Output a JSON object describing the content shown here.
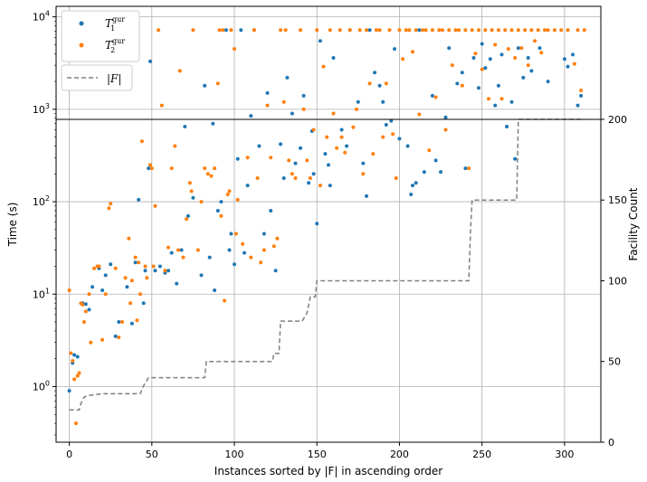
{
  "chart_data": {
    "type": "scatter",
    "xlabel": "Instances sorted by |F| in ascending order",
    "ylabel": "Time (s)",
    "y2label": "Facility Count",
    "xlim": [
      -8,
      322
    ],
    "ylim": [
      0.25,
      13000
    ],
    "yscale": "log",
    "y2lim": [
      0,
      270
    ],
    "x_ticks": [
      0,
      50,
      100,
      150,
      200,
      250,
      300
    ],
    "y_ticks": [
      1,
      10,
      100,
      1000,
      10000
    ],
    "y_tick_labels": [
      "10^0",
      "10^1",
      "10^2",
      "10^3",
      "10^4"
    ],
    "y2_ticks": [
      0,
      50,
      100,
      150,
      200
    ],
    "grid": true,
    "timeout_limit": 7200,
    "colors": {
      "t1": "#1f77b4",
      "t2": "#ff7f0e",
      "f": "#808080"
    },
    "legend": {
      "position": "top-left",
      "entries": [
        {
          "key": "t1",
          "base": "T",
          "sub": "1",
          "sup": "gur"
        },
        {
          "key": "t2",
          "base": "T",
          "sup": "gur",
          "sub": "2"
        },
        {
          "key": "f",
          "label": "|F|"
        }
      ]
    },
    "series": [
      {
        "key": "t1",
        "points": [
          [
            0,
            0.9
          ],
          [
            2,
            1.8
          ],
          [
            3,
            2.2
          ],
          [
            5,
            2.1
          ],
          [
            8,
            8
          ],
          [
            10,
            7.8
          ],
          [
            12,
            6.8
          ],
          [
            14,
            12
          ],
          [
            18,
            19
          ],
          [
            20,
            11
          ],
          [
            22,
            16
          ],
          [
            25,
            21
          ],
          [
            28,
            3.5
          ],
          [
            30,
            5
          ],
          [
            35,
            12
          ],
          [
            38,
            4.8
          ],
          [
            40,
            22
          ],
          [
            42,
            105
          ],
          [
            45,
            8
          ],
          [
            46,
            18
          ],
          [
            48,
            230
          ],
          [
            49,
            3300
          ],
          [
            52,
            18
          ],
          [
            55,
            20
          ],
          [
            58,
            17
          ],
          [
            60,
            18
          ],
          [
            62,
            28
          ],
          [
            65,
            13
          ],
          [
            68,
            30
          ],
          [
            70,
            650
          ],
          [
            72,
            70
          ],
          [
            75,
            110
          ],
          [
            80,
            16
          ],
          [
            82,
            1800
          ],
          [
            85,
            25
          ],
          [
            87,
            700
          ],
          [
            88,
            11
          ],
          [
            90,
            80
          ],
          [
            92,
            100
          ],
          [
            95,
            7200
          ],
          [
            97,
            30
          ],
          [
            98,
            45
          ],
          [
            100,
            21
          ],
          [
            102,
            290
          ],
          [
            104,
            7200
          ],
          [
            106,
            28
          ],
          [
            108,
            150
          ],
          [
            110,
            850
          ],
          [
            112,
            7200
          ],
          [
            115,
            400
          ],
          [
            118,
            45
          ],
          [
            120,
            1500
          ],
          [
            122,
            80
          ],
          [
            125,
            18
          ],
          [
            128,
            420
          ],
          [
            130,
            180
          ],
          [
            132,
            2200
          ],
          [
            135,
            900
          ],
          [
            137,
            260
          ],
          [
            140,
            380
          ],
          [
            142,
            1400
          ],
          [
            145,
            160
          ],
          [
            147,
            580
          ],
          [
            148,
            200
          ],
          [
            150,
            58
          ],
          [
            152,
            5500
          ],
          [
            155,
            330
          ],
          [
            157,
            250
          ],
          [
            158,
            150
          ],
          [
            160,
            3600
          ],
          [
            165,
            600
          ],
          [
            168,
            400
          ],
          [
            170,
            7200
          ],
          [
            175,
            1200
          ],
          [
            178,
            260
          ],
          [
            180,
            115
          ],
          [
            182,
            7200
          ],
          [
            185,
            2500
          ],
          [
            188,
            1800
          ],
          [
            190,
            1200
          ],
          [
            192,
            680
          ],
          [
            195,
            750
          ],
          [
            197,
            4500
          ],
          [
            200,
            480
          ],
          [
            205,
            400
          ],
          [
            207,
            120
          ],
          [
            208,
            150
          ],
          [
            210,
            160
          ],
          [
            212,
            7200
          ],
          [
            215,
            210
          ],
          [
            220,
            1400
          ],
          [
            222,
            280
          ],
          [
            225,
            210
          ],
          [
            228,
            820
          ],
          [
            230,
            4600
          ],
          [
            235,
            1900
          ],
          [
            238,
            2500
          ],
          [
            240,
            230
          ],
          [
            245,
            3600
          ],
          [
            248,
            1700
          ],
          [
            250,
            5100
          ],
          [
            252,
            2800
          ],
          [
            255,
            3500
          ],
          [
            258,
            1100
          ],
          [
            260,
            1800
          ],
          [
            262,
            3900
          ],
          [
            265,
            650
          ],
          [
            268,
            1200
          ],
          [
            270,
            290
          ],
          [
            272,
            4600
          ],
          [
            275,
            2200
          ],
          [
            278,
            3600
          ],
          [
            280,
            2600
          ],
          [
            285,
            4600
          ],
          [
            290,
            2000
          ],
          [
            300,
            3500
          ],
          [
            302,
            2900
          ],
          [
            305,
            3900
          ],
          [
            308,
            1100
          ],
          [
            310,
            1400
          ]
        ]
      },
      {
        "key": "t2",
        "points": [
          [
            0,
            11
          ],
          [
            1,
            2.3
          ],
          [
            2,
            1.9
          ],
          [
            3,
            1.2
          ],
          [
            4,
            0.4
          ],
          [
            5,
            1.3
          ],
          [
            6,
            1.4
          ],
          [
            7,
            8
          ],
          [
            8,
            7.7
          ],
          [
            9,
            5
          ],
          [
            10,
            6.5
          ],
          [
            12,
            10
          ],
          [
            13,
            3
          ],
          [
            15,
            19
          ],
          [
            17,
            20
          ],
          [
            18,
            20
          ],
          [
            20,
            3.2
          ],
          [
            22,
            10
          ],
          [
            24,
            85
          ],
          [
            25,
            95
          ],
          [
            28,
            19
          ],
          [
            30,
            3.4
          ],
          [
            32,
            5
          ],
          [
            34,
            15
          ],
          [
            36,
            40
          ],
          [
            37,
            8
          ],
          [
            38,
            14
          ],
          [
            40,
            25
          ],
          [
            41,
            5.2
          ],
          [
            42,
            22
          ],
          [
            43,
            10
          ],
          [
            44,
            450
          ],
          [
            46,
            20
          ],
          [
            47,
            15
          ],
          [
            49,
            250
          ],
          [
            50,
            230
          ],
          [
            51,
            20
          ],
          [
            52,
            90
          ],
          [
            54,
            7200
          ],
          [
            56,
            1100
          ],
          [
            58,
            18
          ],
          [
            60,
            32
          ],
          [
            62,
            230
          ],
          [
            64,
            400
          ],
          [
            66,
            30
          ],
          [
            67,
            2600
          ],
          [
            69,
            25
          ],
          [
            71,
            65
          ],
          [
            73,
            160
          ],
          [
            74,
            130
          ],
          [
            75,
            7200
          ],
          [
            78,
            30
          ],
          [
            80,
            100
          ],
          [
            82,
            230
          ],
          [
            84,
            200
          ],
          [
            86,
            190
          ],
          [
            88,
            230
          ],
          [
            90,
            1900
          ],
          [
            91,
            7200
          ],
          [
            92,
            70
          ],
          [
            93,
            7200
          ],
          [
            94,
            8.5
          ],
          [
            96,
            120
          ],
          [
            97,
            130
          ],
          [
            98,
            7200
          ],
          [
            100,
            4500
          ],
          [
            101,
            45
          ],
          [
            102,
            105
          ],
          [
            105,
            35
          ],
          [
            108,
            300
          ],
          [
            110,
            25
          ],
          [
            112,
            7200
          ],
          [
            114,
            180
          ],
          [
            116,
            22
          ],
          [
            118,
            30
          ],
          [
            120,
            1100
          ],
          [
            122,
            300
          ],
          [
            124,
            33
          ],
          [
            126,
            40
          ],
          [
            128,
            7200
          ],
          [
            130,
            1200
          ],
          [
            131,
            7200
          ],
          [
            133,
            280
          ],
          [
            135,
            200
          ],
          [
            137,
            180
          ],
          [
            140,
            7200
          ],
          [
            142,
            1000
          ],
          [
            144,
            280
          ],
          [
            146,
            180
          ],
          [
            148,
            600
          ],
          [
            150,
            7200
          ],
          [
            152,
            150
          ],
          [
            154,
            2900
          ],
          [
            156,
            500
          ],
          [
            158,
            7200
          ],
          [
            160,
            900
          ],
          [
            162,
            380
          ],
          [
            164,
            7200
          ],
          [
            165,
            500
          ],
          [
            167,
            340
          ],
          [
            170,
            7200
          ],
          [
            172,
            640
          ],
          [
            174,
            1000
          ],
          [
            176,
            7200
          ],
          [
            178,
            200
          ],
          [
            180,
            7200
          ],
          [
            182,
            1900
          ],
          [
            184,
            330
          ],
          [
            186,
            7200
          ],
          [
            188,
            7200
          ],
          [
            190,
            500
          ],
          [
            192,
            1900
          ],
          [
            194,
            7200
          ],
          [
            196,
            540
          ],
          [
            198,
            180
          ],
          [
            200,
            7200
          ],
          [
            202,
            3500
          ],
          [
            204,
            7200
          ],
          [
            206,
            7200
          ],
          [
            208,
            4200
          ],
          [
            210,
            7200
          ],
          [
            212,
            880
          ],
          [
            214,
            7200
          ],
          [
            216,
            7200
          ],
          [
            218,
            360
          ],
          [
            220,
            7200
          ],
          [
            222,
            1350
          ],
          [
            224,
            7200
          ],
          [
            226,
            7200
          ],
          [
            228,
            600
          ],
          [
            230,
            7200
          ],
          [
            232,
            3000
          ],
          [
            234,
            7200
          ],
          [
            236,
            7200
          ],
          [
            238,
            1800
          ],
          [
            240,
            7200
          ],
          [
            242,
            230
          ],
          [
            244,
            7200
          ],
          [
            246,
            4000
          ],
          [
            248,
            7200
          ],
          [
            250,
            2700
          ],
          [
            252,
            7200
          ],
          [
            254,
            1300
          ],
          [
            256,
            7200
          ],
          [
            258,
            5000
          ],
          [
            260,
            7200
          ],
          [
            262,
            1300
          ],
          [
            264,
            7200
          ],
          [
            266,
            4500
          ],
          [
            268,
            7200
          ],
          [
            270,
            3600
          ],
          [
            272,
            7200
          ],
          [
            274,
            4600
          ],
          [
            276,
            7200
          ],
          [
            278,
            3000
          ],
          [
            280,
            7200
          ],
          [
            282,
            5500
          ],
          [
            284,
            7200
          ],
          [
            286,
            4100
          ],
          [
            288,
            7200
          ],
          [
            290,
            7200
          ],
          [
            294,
            7200
          ],
          [
            298,
            7200
          ],
          [
            302,
            7200
          ],
          [
            306,
            3100
          ],
          [
            308,
            7200
          ],
          [
            310,
            1600
          ],
          [
            312,
            7200
          ]
        ]
      }
    ],
    "f_series": {
      "key": "f",
      "steps": [
        [
          0,
          20
        ],
        [
          6,
          20
        ],
        [
          7,
          24
        ],
        [
          9,
          28
        ],
        [
          12,
          29
        ],
        [
          20,
          30
        ],
        [
          43,
          30
        ],
        [
          45,
          35
        ],
        [
          48,
          40
        ],
        [
          82,
          40
        ],
        [
          83,
          50
        ],
        [
          123,
          50
        ],
        [
          124,
          55
        ],
        [
          127,
          55
        ],
        [
          128,
          75
        ],
        [
          139,
          75
        ],
        [
          141,
          75
        ],
        [
          144,
          80
        ],
        [
          146,
          90
        ],
        [
          149,
          90
        ],
        [
          150,
          100
        ],
        [
          242,
          100
        ],
        [
          243,
          130
        ],
        [
          244,
          150
        ],
        [
          271,
          150
        ],
        [
          272,
          200
        ],
        [
          312,
          200
        ]
      ]
    }
  }
}
